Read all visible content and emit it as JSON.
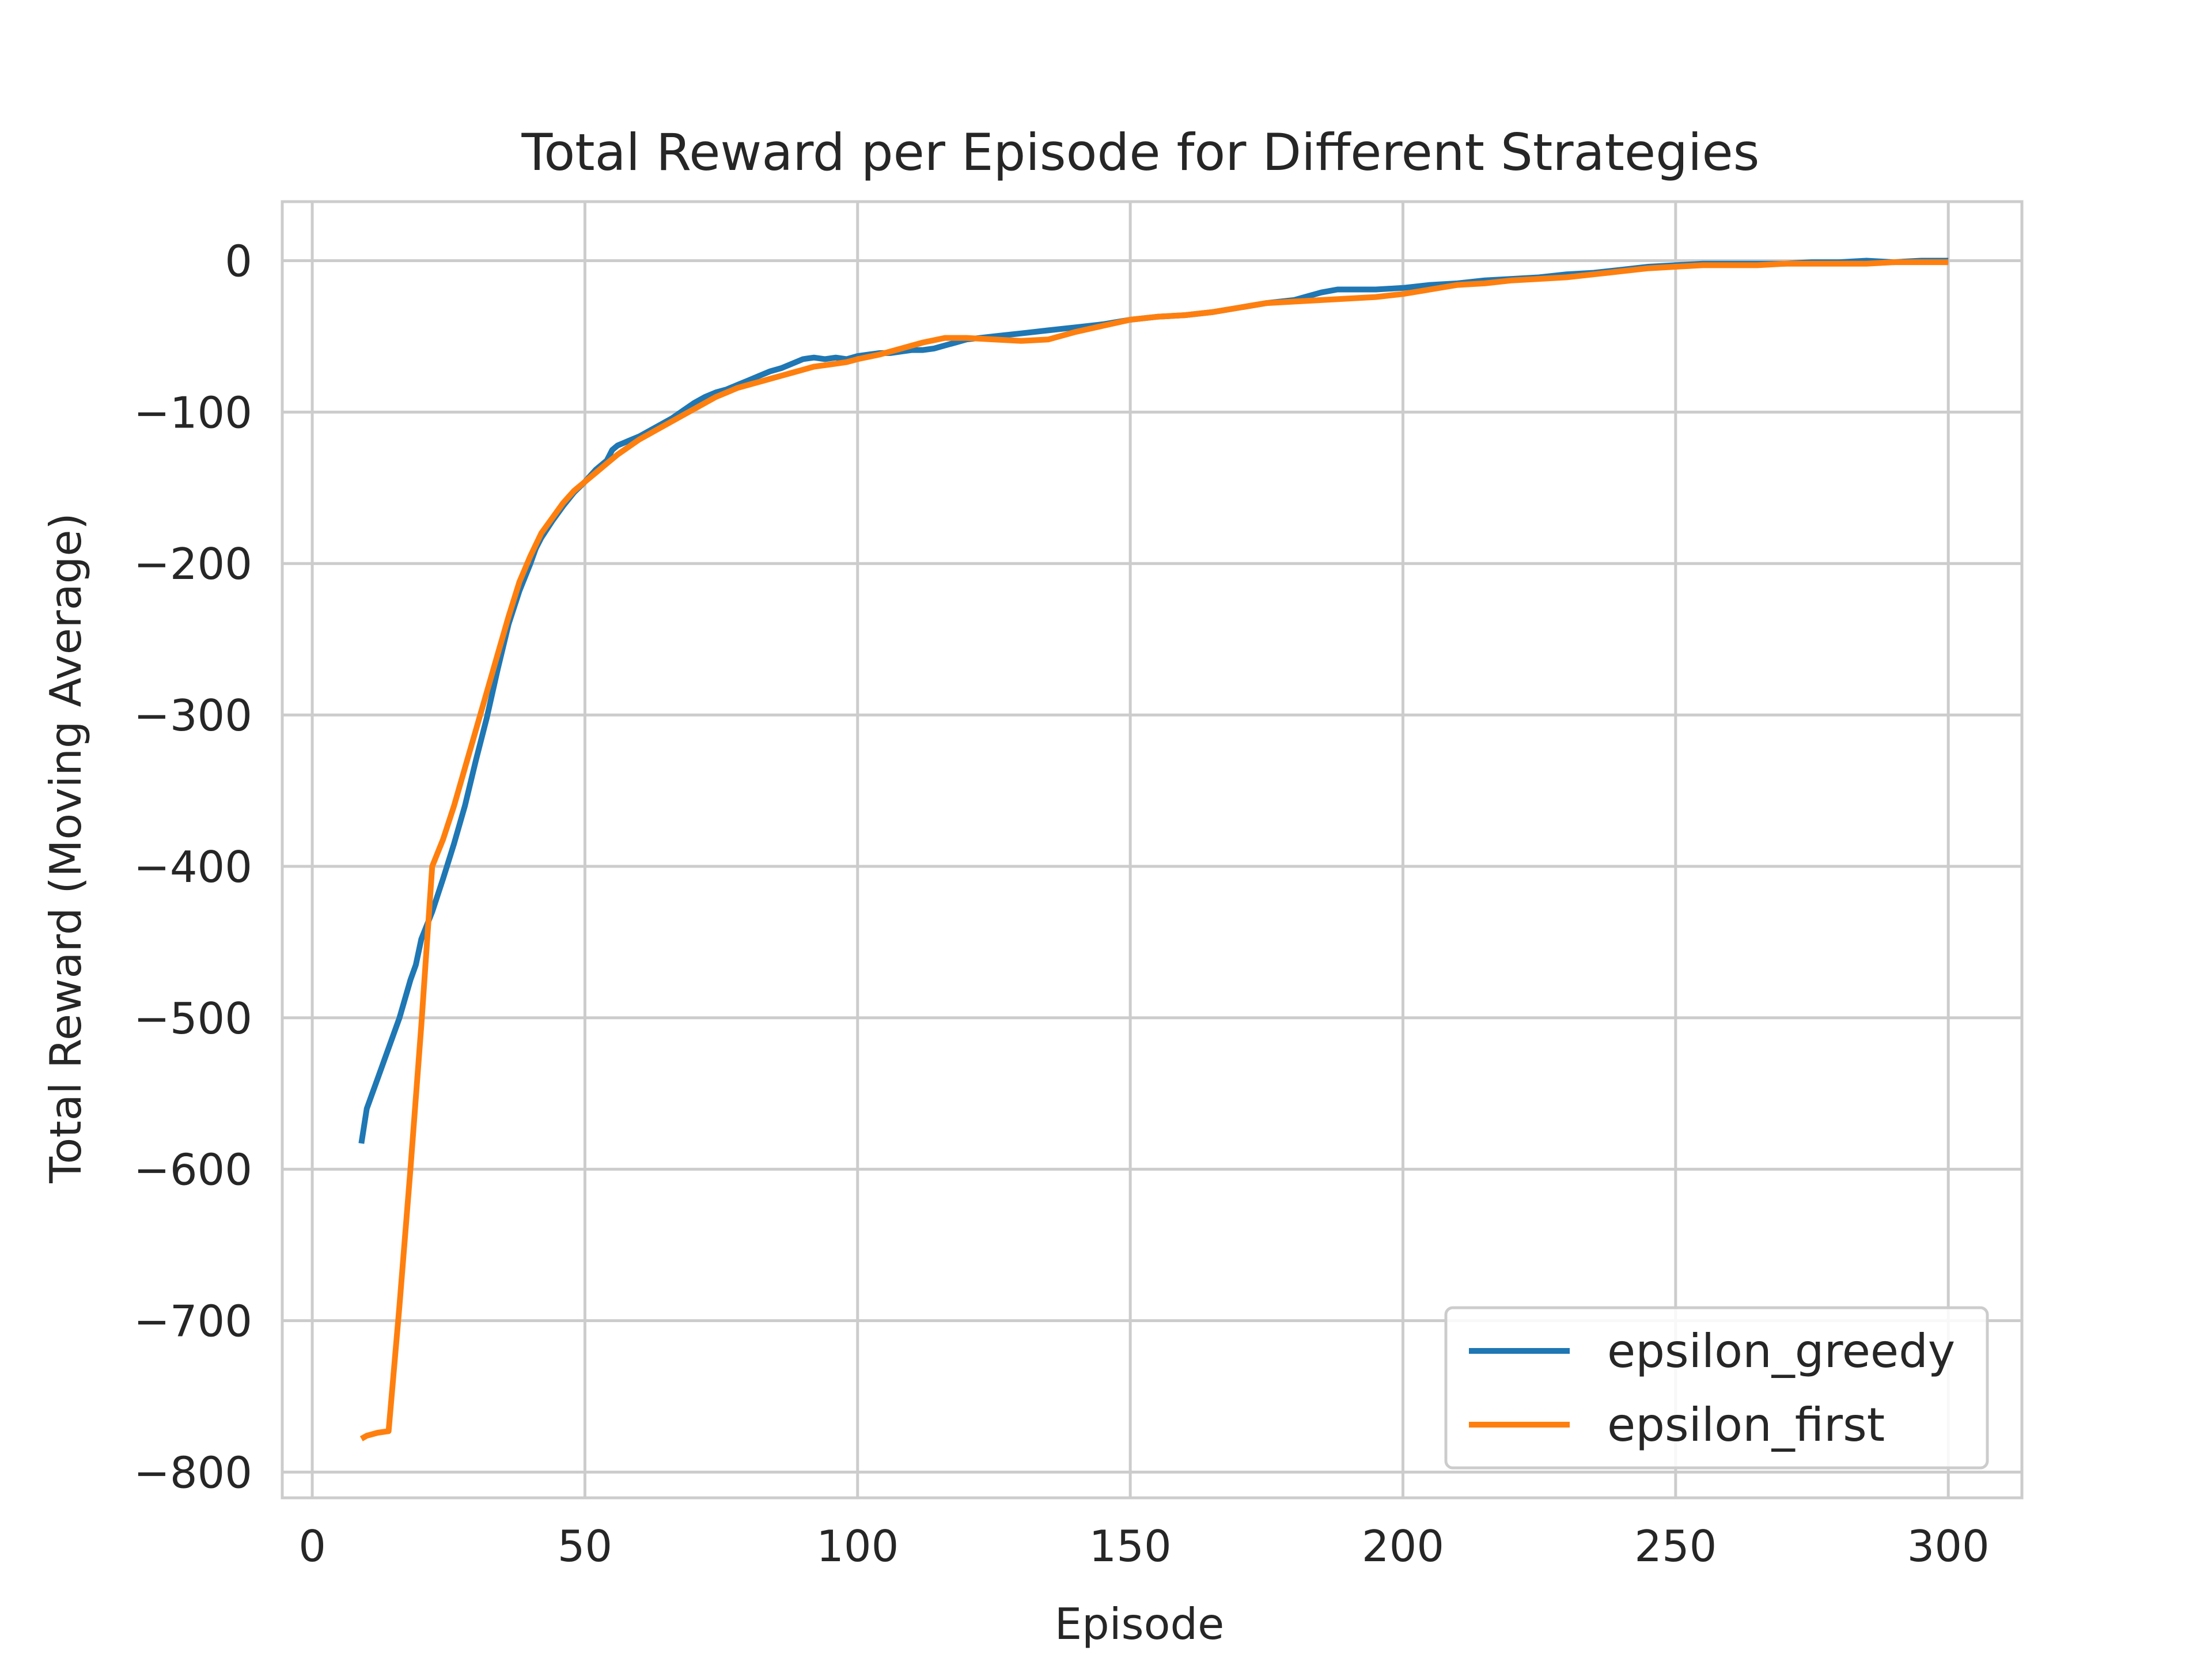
{
  "chart_data": {
    "type": "line",
    "title": "Total Reward per Episode for Different Strategies",
    "xlabel": "Episode",
    "ylabel": "Total Reward (Moving Average)",
    "xlim": [
      -5.5,
      313.5
    ],
    "ylim": [
      -817,
      39
    ],
    "xticks": [
      0,
      50,
      100,
      150,
      200,
      250,
      300
    ],
    "yticks": [
      0,
      -100,
      -200,
      -300,
      -400,
      -500,
      -600,
      -700,
      -800
    ],
    "xtick_labels": [
      "0",
      "50",
      "100",
      "150",
      "200",
      "250",
      "300"
    ],
    "ytick_labels": [
      "0",
      "−100",
      "−200",
      "−300",
      "−400",
      "−500",
      "−600",
      "−700",
      "−800"
    ],
    "grid": true,
    "legend_position": "lower-right",
    "series": [
      {
        "name": "epsilon_greedy",
        "color": "#1f77b4",
        "x": [
          9,
          10,
          12,
          14,
          16,
          18,
          19,
          20,
          22,
          24,
          26,
          28,
          30,
          32,
          34,
          36,
          38,
          40,
          41,
          42,
          44,
          46,
          48,
          50,
          52,
          54,
          55,
          56,
          58,
          60,
          62,
          64,
          66,
          68,
          70,
          72,
          74,
          76,
          78,
          80,
          82,
          84,
          86,
          88,
          90,
          92,
          94,
          96,
          98,
          100,
          102,
          104,
          106,
          108,
          110,
          112,
          114,
          116,
          118,
          120,
          125,
          130,
          135,
          140,
          145,
          150,
          155,
          160,
          165,
          170,
          175,
          180,
          185,
          188,
          190,
          195,
          200,
          205,
          210,
          215,
          220,
          225,
          230,
          235,
          240,
          245,
          250,
          255,
          260,
          265,
          270,
          275,
          280,
          285,
          290,
          295,
          300
        ],
        "values": [
          -583,
          -560,
          -540,
          -520,
          -500,
          -475,
          -465,
          -448,
          -430,
          -408,
          -385,
          -360,
          -330,
          -302,
          -270,
          -240,
          -218,
          -200,
          -190,
          -183,
          -172,
          -162,
          -153,
          -146,
          -138,
          -132,
          -125,
          -122,
          -119,
          -116,
          -112,
          -108,
          -104,
          -99,
          -94,
          -90,
          -87,
          -85,
          -82,
          -79,
          -76,
          -73,
          -71,
          -68,
          -65,
          -64,
          -65,
          -64,
          -65,
          -63,
          -62,
          -61,
          -61,
          -60,
          -59,
          -59,
          -58,
          -56,
          -54,
          -52,
          -50,
          -48,
          -46,
          -44,
          -42,
          -39,
          -37,
          -36,
          -34,
          -31,
          -28,
          -26,
          -21,
          -19,
          -19,
          -19,
          -18,
          -16,
          -15,
          -13,
          -12,
          -11,
          -9,
          -8,
          -6,
          -4,
          -3,
          -2,
          -2,
          -2,
          -2,
          -1,
          -1,
          0,
          -1,
          0,
          0
        ]
      },
      {
        "name": "epsilon_first",
        "color": "#ff7f0e",
        "x": [
          9,
          10,
          12,
          14,
          16,
          18,
          20,
          22,
          24,
          26,
          28,
          30,
          32,
          34,
          36,
          38,
          40,
          42,
          44,
          46,
          48,
          50,
          52,
          54,
          56,
          58,
          60,
          62,
          64,
          66,
          68,
          70,
          72,
          74,
          76,
          78,
          80,
          82,
          84,
          86,
          88,
          90,
          92,
          94,
          96,
          98,
          100,
          104,
          108,
          112,
          116,
          120,
          125,
          130,
          135,
          140,
          145,
          150,
          155,
          160,
          165,
          170,
          175,
          180,
          185,
          190,
          195,
          200,
          205,
          210,
          215,
          220,
          225,
          230,
          235,
          240,
          245,
          250,
          255,
          260,
          265,
          270,
          275,
          280,
          285,
          290,
          295,
          300
        ],
        "values": [
          -778,
          -776,
          -774,
          -773,
          -690,
          -600,
          -505,
          -400,
          -382,
          -360,
          -335,
          -310,
          -285,
          -260,
          -235,
          -212,
          -195,
          -180,
          -170,
          -160,
          -152,
          -146,
          -140,
          -134,
          -128,
          -123,
          -118,
          -114,
          -110,
          -106,
          -102,
          -98,
          -94,
          -90,
          -87,
          -84,
          -82,
          -80,
          -78,
          -76,
          -74,
          -72,
          -70,
          -69,
          -68,
          -67,
          -65,
          -62,
          -58,
          -54,
          -51,
          -51,
          -52,
          -53,
          -52,
          -47,
          -43,
          -39,
          -37,
          -36,
          -34,
          -31,
          -28,
          -27,
          -26,
          -25,
          -24,
          -22,
          -19,
          -16,
          -15,
          -13,
          -12,
          -11,
          -9,
          -7,
          -5,
          -4,
          -3,
          -3,
          -3,
          -2,
          -2,
          -2,
          -2,
          -1,
          -1,
          -1
        ]
      }
    ]
  }
}
